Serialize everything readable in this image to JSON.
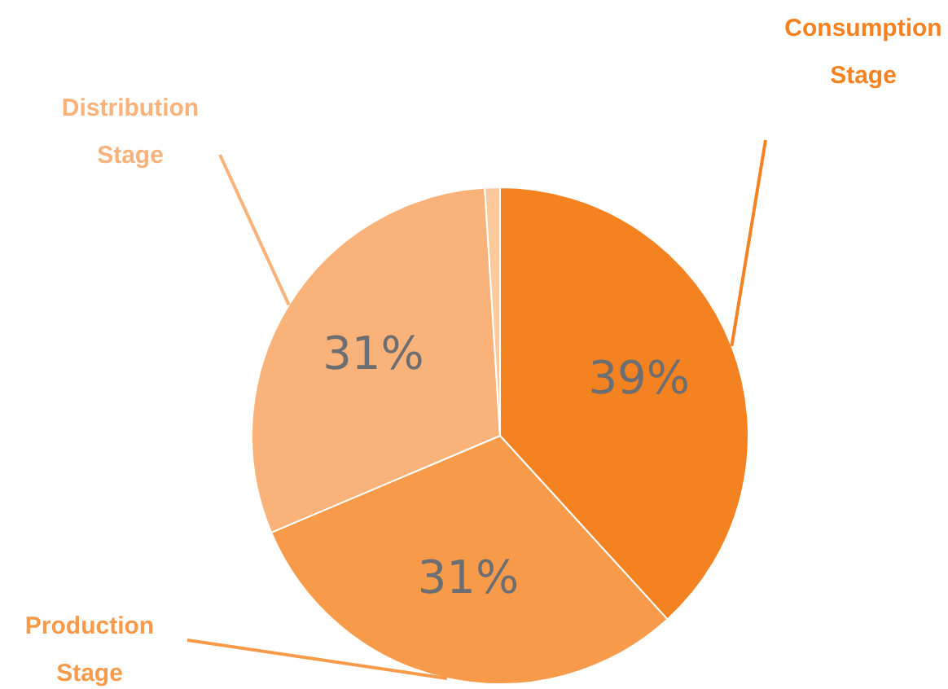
{
  "chart_data": {
    "type": "pie",
    "categories": [
      "Consumption Stage",
      "Production Stage",
      "Distribution Stage",
      null
    ],
    "values": [
      39,
      31,
      31,
      1
    ],
    "colors": [
      "#f58220",
      "#f79a4a",
      "#f9b27a",
      "#fbc99c"
    ],
    "value_labels": [
      "39%",
      "31%",
      "31%",
      null
    ],
    "legend": false
  }
}
